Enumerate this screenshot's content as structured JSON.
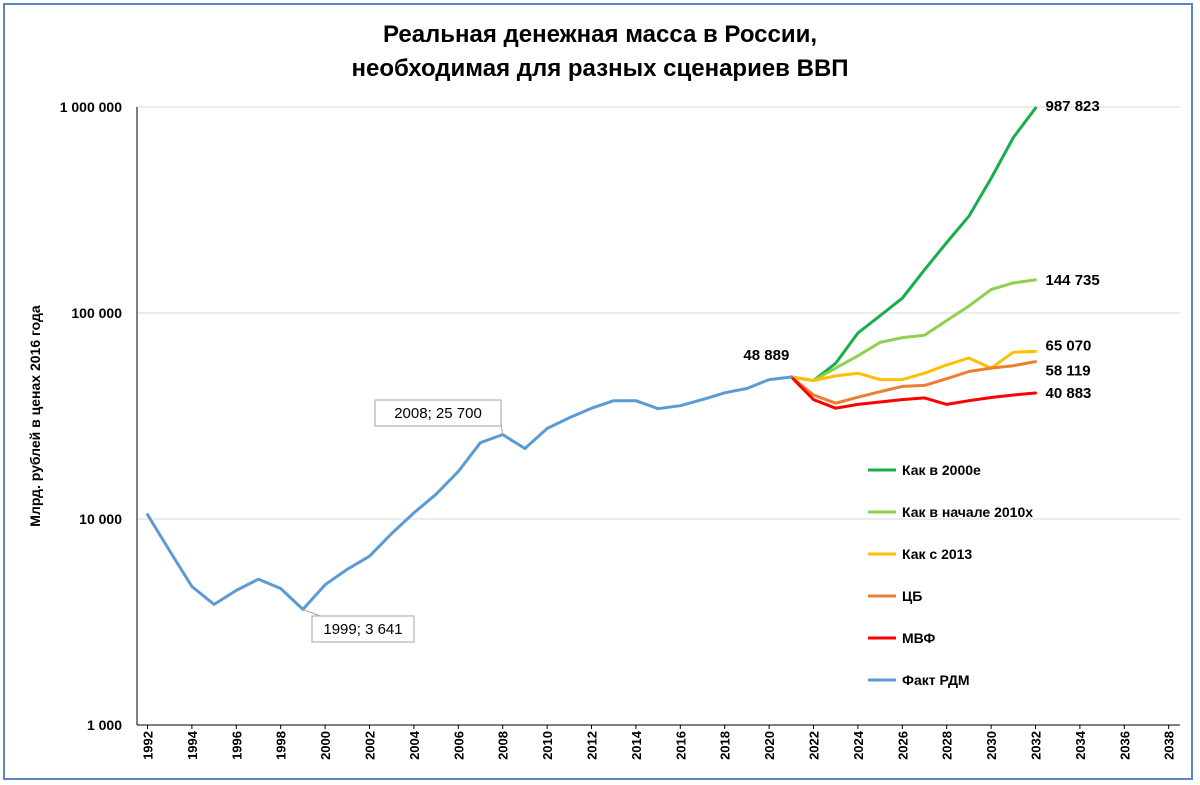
{
  "chart_data": {
    "type": "line",
    "title_line1": "Реальная денежная масса в России,",
    "title_line2": "необходимая для разных сценариев ВВП",
    "ylabel": "Млрд. рублей в ценах 2016 года",
    "xlabel": "",
    "yscale": "log",
    "ylim": [
      1000,
      1000000
    ],
    "yticks": [
      1000,
      10000,
      100000,
      1000000
    ],
    "ytick_labels": [
      "1 000",
      "10 000",
      "100 000",
      "1 000 000"
    ],
    "xlim": [
      1992,
      2038
    ],
    "xtick_labels": [
      "1992",
      "1994",
      "1996",
      "1998",
      "2000",
      "2002",
      "2004",
      "2006",
      "2008",
      "2010",
      "2012",
      "2014",
      "2016",
      "2018",
      "2020",
      "2022",
      "2024",
      "2026",
      "2028",
      "2030",
      "2032",
      "2034",
      "2036",
      "2038"
    ],
    "grid": "horizontal",
    "legend_position": "right",
    "series": [
      {
        "name": "Как в 2000е",
        "color": "#1aad4b",
        "x": [
          2021,
          2022,
          2023,
          2024,
          2025,
          2026,
          2027,
          2028,
          2029,
          2030,
          2031,
          2032
        ],
        "values": [
          48889,
          47000,
          57000,
          80000,
          97000,
          118000,
          162000,
          220000,
          295000,
          450000,
          710000,
          987823
        ],
        "end_label": "987 823"
      },
      {
        "name": "Как в начале 2010х",
        "color": "#8fd14f",
        "x": [
          2021,
          2022,
          2023,
          2024,
          2025,
          2026,
          2027,
          2028,
          2029,
          2030,
          2031,
          2032
        ],
        "values": [
          48889,
          47000,
          54000,
          62000,
          72000,
          76000,
          78000,
          92000,
          108000,
          130000,
          140000,
          144735
        ],
        "end_label": "144 735"
      },
      {
        "name": "Как с 2013",
        "color": "#ffc000",
        "x": [
          2021,
          2022,
          2023,
          2024,
          2025,
          2026,
          2027,
          2028,
          2029,
          2030,
          2031,
          2032
        ],
        "values": [
          48889,
          47000,
          49500,
          51000,
          47500,
          47500,
          51000,
          56000,
          60500,
          54000,
          64500,
          65070
        ],
        "end_label": "65 070"
      },
      {
        "name": "ЦБ",
        "color": "#ed7d31",
        "x": [
          2021,
          2022,
          2023,
          2024,
          2025,
          2026,
          2027,
          2028,
          2029,
          2030,
          2031,
          2032
        ],
        "values": [
          48889,
          40000,
          36500,
          39000,
          41500,
          44000,
          44500,
          48000,
          52000,
          54000,
          55500,
          58119
        ],
        "end_label": "58 119"
      },
      {
        "name": "МВФ",
        "color": "#ff0000",
        "x": [
          2021,
          2022,
          2023,
          2024,
          2025,
          2026,
          2027,
          2028,
          2029,
          2030,
          2031,
          2032
        ],
        "values": [
          48889,
          38000,
          34500,
          36000,
          37000,
          38000,
          38700,
          36000,
          37500,
          38900,
          40000,
          40883
        ],
        "end_label": "40 883"
      },
      {
        "name": "Факт РДМ",
        "color": "#5b9bd5",
        "x": [
          1992,
          1993,
          1994,
          1995,
          1996,
          1997,
          1998,
          1999,
          2000,
          2001,
          2002,
          2003,
          2004,
          2005,
          2006,
          2007,
          2008,
          2009,
          2010,
          2011,
          2012,
          2013,
          2014,
          2015,
          2016,
          2017,
          2018,
          2019,
          2020,
          2021
        ],
        "values": [
          10500,
          7000,
          4700,
          3850,
          4500,
          5100,
          4600,
          3641,
          4800,
          5700,
          6600,
          8500,
          10700,
          13200,
          17000,
          23500,
          25700,
          22000,
          27500,
          31000,
          34500,
          37500,
          37500,
          34300,
          35500,
          38000,
          41000,
          43000,
          47500,
          48889
        ],
        "end_label": ""
      }
    ],
    "annotations": [
      {
        "text": "2008; 25 700",
        "x": 2008,
        "y": 25700
      },
      {
        "text": "1999; 3 641",
        "x": 1999,
        "y": 3641
      },
      {
        "text": "48 889",
        "x": 2021,
        "y": 48889
      }
    ]
  }
}
